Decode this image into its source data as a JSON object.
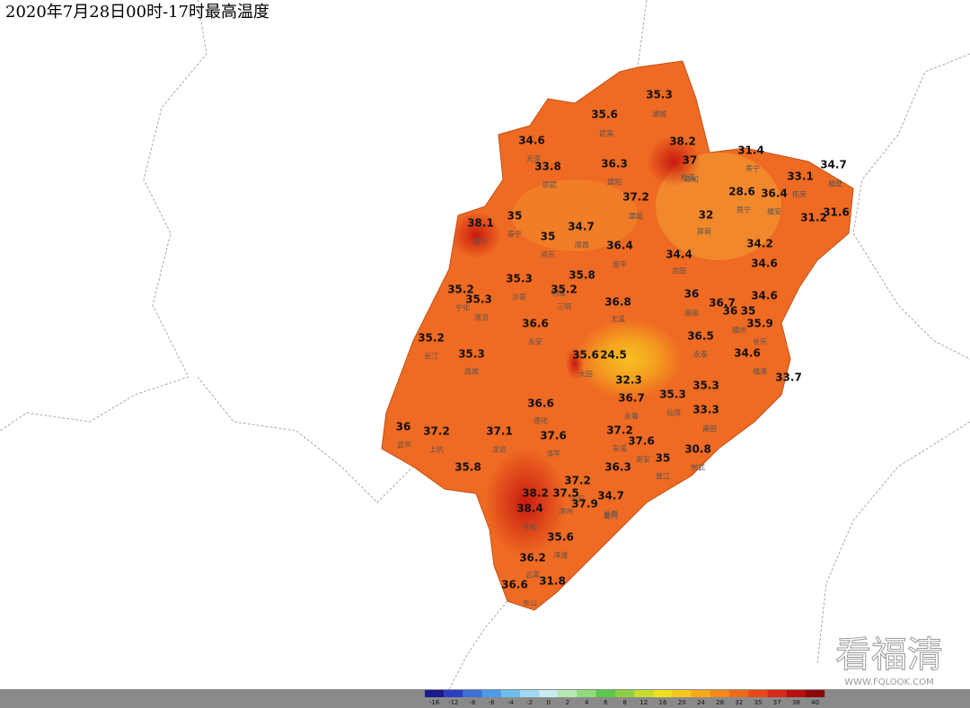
{
  "title": "2020年7月28日00时-17时最高温度",
  "temperatures": [
    35.3,
    35.6,
    38.2,
    37,
    34.6,
    33.8,
    36.3,
    31.4,
    33.1,
    34.7,
    28.6,
    36.4,
    37.2,
    32,
    31.2,
    31.6,
    38.1,
    35,
    35,
    34.7,
    36.4,
    34.2,
    34.4,
    34.6,
    35.3,
    35.8,
    35.2,
    35.3,
    35.2,
    36.8,
    36,
    36.7,
    34.6,
    36,
    35,
    35.9,
    36.6,
    35.2,
    36.5,
    35.3,
    35.6,
    24.5,
    34.6,
    32.3,
    33.7,
    35.3,
    36.7,
    35.3,
    33.3,
    36.6,
    36,
    37.2,
    37.1,
    37.6,
    37.2,
    37.6,
    30.8,
    35,
    35.8,
    36.3,
    37.2,
    38.2,
    37.5,
    34.7,
    37.9,
    38.4,
    35.6,
    36.2,
    36.6,
    31.8
  ],
  "cities": [
    "浦城",
    "武夷",
    "光泽",
    "邵武",
    "建阳",
    "松溪",
    "政和",
    "寿宁",
    "柘荣",
    "福鼎",
    "周宁",
    "福安",
    "屏南",
    "建瓯",
    "建宁",
    "泰宁",
    "将乐",
    "顺昌",
    "南平",
    "古田",
    "明溪",
    "沙县",
    "三明",
    "尤溪",
    "宁化",
    "清流",
    "永安",
    "长汀",
    "连城",
    "大田",
    "闽侯",
    "福州",
    "长乐",
    "永泰",
    "福清",
    "德化",
    "仙游",
    "莆田",
    "武平",
    "上杭",
    "龙岩",
    "漳平",
    "永春",
    "安溪",
    "南安",
    "晋江",
    "崇武",
    "华安",
    "长泰",
    "厦门",
    "漳州",
    "平和",
    "漳浦",
    "云霄",
    "东山"
  ],
  "legend": {
    "ticks": [
      -16,
      -12,
      -8,
      -6,
      -4,
      -2,
      0,
      2,
      4,
      6,
      8,
      12,
      16,
      20,
      24,
      28,
      32,
      35,
      37,
      38,
      40
    ],
    "colors": [
      "#1a1a8c",
      "#2a3fc0",
      "#3c6fd8",
      "#4f9ae6",
      "#6cbde9",
      "#9fd9ef",
      "#c8ecef",
      "#b5e8b0",
      "#8fdc7a",
      "#5cc84a",
      "#8fd040",
      "#c8dc30",
      "#f0e020",
      "#f8c820",
      "#f8a818",
      "#f48818",
      "#f06a18",
      "#e84818",
      "#d82818",
      "#b81010",
      "#8c0808"
    ]
  },
  "watermark": {
    "logo": "看福清",
    "url": "WWW.FQLOOK.COM"
  }
}
